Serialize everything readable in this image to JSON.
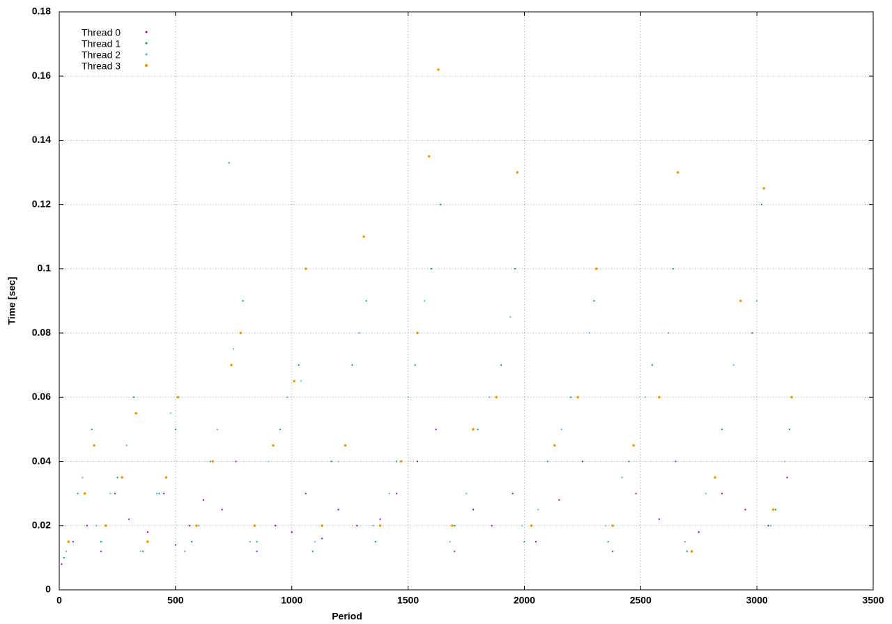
{
  "chart_data": {
    "type": "scatter",
    "x_label": "Period",
    "y_label": "Time [sec]",
    "xlim": [
      0,
      3500
    ],
    "xticks": [
      0,
      500,
      1000,
      1500,
      2000,
      2500,
      3000,
      3500
    ],
    "ylim": [
      0,
      0.18
    ],
    "yticks": [
      0,
      0.02,
      0.04,
      0.06,
      0.08,
      0.1,
      0.12,
      0.14,
      0.16,
      0.18
    ],
    "grid": true,
    "legend": "top-left",
    "series": [
      {
        "name": "Thread 0",
        "color": "#9400d3",
        "x": [
          10,
          60,
          120,
          180,
          240,
          300,
          380,
          450,
          500,
          560,
          620,
          700,
          760,
          850,
          930,
          1000,
          1060,
          1130,
          1200,
          1280,
          1380,
          1450,
          1540,
          1620,
          1700,
          1780,
          1860,
          1950,
          2050,
          2150,
          2250,
          2380,
          2480,
          2580,
          2650,
          2750,
          2850,
          2950,
          3050,
          3130
        ],
        "values": [
          0.008,
          0.015,
          0.02,
          0.012,
          0.03,
          0.022,
          0.018,
          0.03,
          0.014,
          0.02,
          0.028,
          0.025,
          0.04,
          0.012,
          0.02,
          0.018,
          0.03,
          0.016,
          0.025,
          0.02,
          0.022,
          0.03,
          0.04,
          0.05,
          0.012,
          0.025,
          0.02,
          0.03,
          0.015,
          0.028,
          0.04,
          0.012,
          0.03,
          0.022,
          0.04,
          0.018,
          0.03,
          0.025,
          0.02,
          0.035
        ]
      },
      {
        "name": "Thread 1",
        "color": "#009e73",
        "x": [
          20,
          80,
          140,
          180,
          250,
          320,
          360,
          430,
          500,
          570,
          650,
          730,
          790,
          850,
          950,
          1030,
          1090,
          1170,
          1260,
          1320,
          1360,
          1450,
          1530,
          1600,
          1640,
          1700,
          1800,
          1900,
          1960,
          2000,
          2100,
          2200,
          2300,
          2360,
          2450,
          2550,
          2640,
          2700,
          2850,
          2980,
          3020,
          3080,
          3140
        ],
        "values": [
          0.01,
          0.03,
          0.05,
          0.015,
          0.035,
          0.06,
          0.012,
          0.03,
          0.05,
          0.015,
          0.04,
          0.133,
          0.09,
          0.015,
          0.05,
          0.07,
          0.012,
          0.04,
          0.07,
          0.09,
          0.015,
          0.04,
          0.07,
          0.1,
          0.12,
          0.02,
          0.05,
          0.07,
          0.1,
          0.015,
          0.04,
          0.06,
          0.09,
          0.015,
          0.04,
          0.07,
          0.1,
          0.012,
          0.05,
          0.08,
          0.12,
          0.025,
          0.05
        ]
      },
      {
        "name": "Thread 2",
        "color": "#56b4e9",
        "x": [
          30,
          100,
          160,
          220,
          290,
          350,
          420,
          480,
          540,
          600,
          680,
          750,
          820,
          900,
          980,
          1040,
          1100,
          1200,
          1290,
          1350,
          1420,
          1500,
          1570,
          1680,
          1750,
          1850,
          1940,
          1990,
          2060,
          2160,
          2280,
          2350,
          2420,
          2520,
          2620,
          2690,
          2780,
          2900,
          3000,
          3060,
          3120
        ],
        "values": [
          0.012,
          0.035,
          0.02,
          0.03,
          0.045,
          0.012,
          0.03,
          0.055,
          0.012,
          0.02,
          0.05,
          0.075,
          0.015,
          0.04,
          0.06,
          0.065,
          0.015,
          0.04,
          0.08,
          0.02,
          0.03,
          0.06,
          0.09,
          0.015,
          0.03,
          0.06,
          0.085,
          0.02,
          0.025,
          0.05,
          0.08,
          0.02,
          0.035,
          0.06,
          0.08,
          0.015,
          0.03,
          0.07,
          0.09,
          0.02,
          0.04
        ]
      },
      {
        "name": "Thread 3",
        "color": "#e69f00",
        "x": [
          40,
          110,
          150,
          200,
          270,
          330,
          380,
          460,
          510,
          590,
          660,
          740,
          780,
          840,
          920,
          1010,
          1060,
          1130,
          1230,
          1310,
          1380,
          1470,
          1540,
          1590,
          1630,
          1690,
          1780,
          1880,
          1970,
          2030,
          2130,
          2230,
          2310,
          2380,
          2470,
          2580,
          2660,
          2720,
          2820,
          2930,
          3030,
          3070,
          3150
        ],
        "values": [
          0.015,
          0.03,
          0.045,
          0.02,
          0.035,
          0.055,
          0.015,
          0.035,
          0.06,
          0.02,
          0.04,
          0.07,
          0.08,
          0.02,
          0.045,
          0.065,
          0.1,
          0.02,
          0.045,
          0.11,
          0.02,
          0.04,
          0.08,
          0.135,
          0.162,
          0.02,
          0.05,
          0.06,
          0.13,
          0.02,
          0.045,
          0.06,
          0.1,
          0.02,
          0.045,
          0.06,
          0.13,
          0.012,
          0.035,
          0.09,
          0.125,
          0.025,
          0.06
        ]
      }
    ]
  }
}
